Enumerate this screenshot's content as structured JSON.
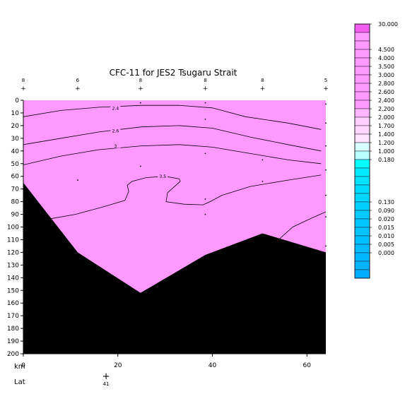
{
  "chart_data": {
    "type": "contour",
    "title": "CFC-11 for JES2 Tsugaru Strait",
    "x_axis_label": "km",
    "lat_label": "Lat",
    "lat_ticks": [
      {
        "x": 17.5,
        "label": "41"
      }
    ],
    "x_ticks": [
      0,
      20,
      40,
      60
    ],
    "xlim": [
      0,
      64
    ],
    "y_ticks": [
      0,
      10,
      20,
      30,
      40,
      50,
      60,
      70,
      80,
      90,
      100,
      110,
      120,
      130,
      140,
      150,
      160,
      170,
      180,
      190,
      200
    ],
    "ylim": [
      0,
      200
    ],
    "y_reversed": true,
    "stations": [
      {
        "x": 0,
        "label": "8"
      },
      {
        "x": 11.5,
        "label": "6"
      },
      {
        "x": 24.8,
        "label": "8"
      },
      {
        "x": 38.5,
        "label": "8"
      },
      {
        "x": 50.6,
        "label": "8"
      },
      {
        "x": 64,
        "label": "5"
      }
    ],
    "fill_color": "#ff99ff",
    "bottom_color": "#000000",
    "bottom_profile": [
      [
        0,
        65
      ],
      [
        11.5,
        120
      ],
      [
        24.8,
        152
      ],
      [
        38.5,
        122
      ],
      [
        50.6,
        105
      ],
      [
        64,
        120
      ]
    ],
    "contours": [
      {
        "label": "2.4",
        "label_at": [
          19.5,
          6
        ],
        "points": [
          [
            0,
            13
          ],
          [
            8,
            8
          ],
          [
            16,
            5.5
          ],
          [
            25,
            4
          ],
          [
            33,
            4
          ],
          [
            40,
            6
          ],
          [
            47,
            13
          ],
          [
            56,
            18
          ],
          [
            63,
            23
          ]
        ]
      },
      {
        "label": "2.6",
        "label_at": [
          19.5,
          24
        ],
        "points": [
          [
            0,
            35
          ],
          [
            8,
            30
          ],
          [
            16,
            25
          ],
          [
            25,
            21
          ],
          [
            33,
            20
          ],
          [
            40,
            22
          ],
          [
            48,
            29
          ],
          [
            56,
            35
          ],
          [
            63,
            40
          ]
        ]
      },
      {
        "label": "3",
        "label_at": [
          19.5,
          36
        ],
        "points": [
          [
            0,
            51
          ],
          [
            8,
            44
          ],
          [
            16,
            39
          ],
          [
            25,
            36
          ],
          [
            33,
            35
          ],
          [
            40,
            37
          ],
          [
            48,
            42
          ],
          [
            56,
            47
          ],
          [
            63,
            50
          ]
        ]
      },
      {
        "label": "3.5",
        "label_at": [
          29.5,
          60
        ],
        "points": [
          [
            5,
            94
          ],
          [
            11,
            90
          ],
          [
            17,
            84
          ],
          [
            21.5,
            79
          ],
          [
            22.3,
            72
          ],
          [
            22,
            67
          ],
          [
            23,
            64
          ],
          [
            26,
            61
          ],
          [
            30,
            60
          ],
          [
            33,
            62
          ],
          [
            33.2,
            64
          ],
          [
            32,
            68
          ],
          [
            30.5,
            73
          ],
          [
            30.2,
            80
          ],
          [
            34,
            82
          ],
          [
            38,
            82.5
          ],
          [
            39.5,
            80
          ],
          [
            42,
            75
          ],
          [
            48,
            68
          ],
          [
            56,
            63
          ],
          [
            63,
            59
          ]
        ]
      },
      {
        "label": "",
        "label_at": null,
        "points": [
          [
            54,
            110
          ],
          [
            57,
            100
          ],
          [
            61,
            93
          ],
          [
            64,
            88
          ]
        ]
      }
    ],
    "colorbar": {
      "labels": [
        "30.000",
        "4.500",
        "4.000",
        "3.500",
        "3.000",
        "2.800",
        "2.600",
        "2.400",
        "2.200",
        "2.000",
        "1.700",
        "1.400",
        "1.200",
        "1.000",
        "0.180",
        "0.130",
        "0.090",
        "0.020",
        "0.015",
        "0.010",
        "0.005",
        "0.000"
      ],
      "colors": [
        "#f05ef0",
        "#ff99ff",
        "#ff99ff",
        "#ff99ff",
        "#ff99ff",
        "#ff99ff",
        "#ff99ff",
        "#ff99ff",
        "#ff99ff",
        "#ff99ff",
        "#ffb6ff",
        "#ffd0ff",
        "#ffd7ff",
        "#ffe3ff",
        "#d7ffff",
        "#b8ffff",
        "#00ffff",
        "#00ebff",
        "#00e4ff",
        "#00dbff",
        "#00d6ff",
        "#00d0ff",
        "#00caff",
        "#00c6ff",
        "#00c3ff",
        "#00c0ff",
        "#00bbff",
        "#00b8ff",
        "#00b3ff",
        "#00acff"
      ]
    }
  }
}
